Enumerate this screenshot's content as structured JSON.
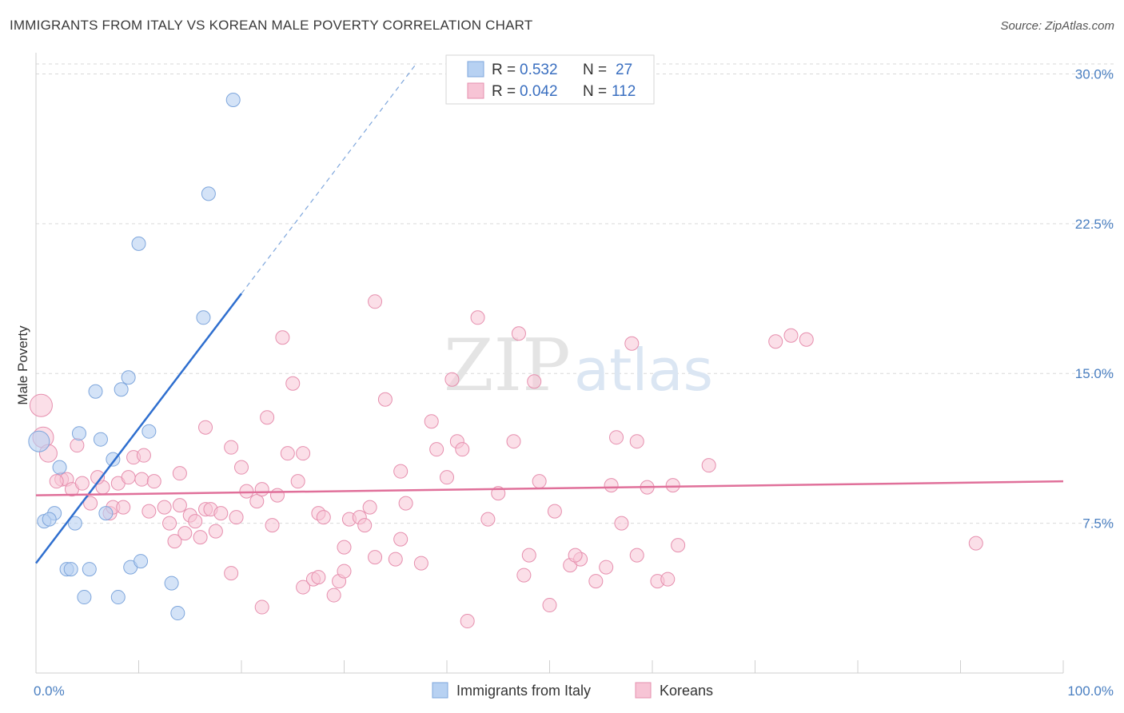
{
  "header": {
    "title": "IMMIGRANTS FROM ITALY VS KOREAN MALE POVERTY CORRELATION CHART",
    "source": "Source: ZipAtlas.com"
  },
  "watermark": {
    "zip": "ZIP",
    "atlas": "atlas"
  },
  "colors": {
    "blue_fill": "#b7d1f2",
    "blue_stroke": "#7ea6dc",
    "blue_line": "#2f6fcf",
    "pink_fill": "#f7c4d5",
    "pink_stroke": "#e68fae",
    "pink_line": "#e0709a",
    "tick_label": "#4a7fc1",
    "grid": "#d9d9d9"
  },
  "legend": {
    "rows": [
      {
        "r_label": "R =",
        "r_value": "0.532",
        "n_label": "N =",
        "n_value": "27"
      },
      {
        "r_label": "R =",
        "r_value": "0.042",
        "n_label": "N =",
        "n_value": "112"
      }
    ]
  },
  "chart_data": {
    "type": "scatter",
    "xlabel": "",
    "ylabel": "Male Poverty",
    "xlim": [
      0,
      100
    ],
    "ylim": [
      0,
      30.5
    ],
    "x_tick_labels": [
      "0.0%",
      "100.0%"
    ],
    "y_ticks": [
      7.5,
      15.0,
      22.5,
      30.0
    ],
    "y_tick_labels": [
      "7.5%",
      "15.0%",
      "22.5%",
      "30.0%"
    ],
    "grid": true,
    "legend_position": "bottom",
    "series": [
      {
        "name": "Immigrants from Italy",
        "color": "#b7d1f2",
        "trend": {
          "x": [
            0,
            20
          ],
          "y": [
            5.5,
            19.0
          ],
          "dashed_to": [
            37,
            30.5
          ]
        },
        "points": [
          [
            19.2,
            28.7
          ],
          [
            16.8,
            24.0
          ],
          [
            10.0,
            21.5
          ],
          [
            16.3,
            17.8
          ],
          [
            9.0,
            14.8
          ],
          [
            5.8,
            14.1
          ],
          [
            8.3,
            14.2
          ],
          [
            0.3,
            11.6
          ],
          [
            4.2,
            12.0
          ],
          [
            6.3,
            11.7
          ],
          [
            11.0,
            12.1
          ],
          [
            7.5,
            10.7
          ],
          [
            2.3,
            10.3
          ],
          [
            1.8,
            8.0
          ],
          [
            0.8,
            7.6
          ],
          [
            1.3,
            7.7
          ],
          [
            3.8,
            7.5
          ],
          [
            6.8,
            8.0
          ],
          [
            3.0,
            5.2
          ],
          [
            3.4,
            5.2
          ],
          [
            5.2,
            5.2
          ],
          [
            9.2,
            5.3
          ],
          [
            10.2,
            5.6
          ],
          [
            4.7,
            3.8
          ],
          [
            8.0,
            3.8
          ],
          [
            13.2,
            4.5
          ],
          [
            13.8,
            3.0
          ]
        ]
      },
      {
        "name": "Koreans",
        "color": "#f7c4d5",
        "trend": {
          "x": [
            0,
            100
          ],
          "y": [
            8.9,
            9.6
          ]
        },
        "points": [
          [
            0.5,
            13.4
          ],
          [
            0.7,
            11.8
          ],
          [
            1.2,
            11.0
          ],
          [
            4.0,
            11.4
          ],
          [
            2.5,
            9.7
          ],
          [
            3.0,
            9.7
          ],
          [
            2.0,
            9.6
          ],
          [
            3.5,
            9.2
          ],
          [
            4.5,
            9.5
          ],
          [
            5.3,
            8.5
          ],
          [
            6.5,
            9.3
          ],
          [
            7.2,
            8.0
          ],
          [
            8.0,
            9.5
          ],
          [
            9.0,
            9.8
          ],
          [
            10.3,
            9.7
          ],
          [
            9.5,
            10.8
          ],
          [
            10.5,
            10.9
          ],
          [
            6.0,
            9.8
          ],
          [
            7.5,
            8.3
          ],
          [
            8.5,
            8.3
          ],
          [
            11.0,
            8.1
          ],
          [
            12.5,
            8.3
          ],
          [
            14.0,
            8.4
          ],
          [
            15.0,
            7.9
          ],
          [
            15.5,
            7.6
          ],
          [
            16.5,
            8.2
          ],
          [
            17.0,
            8.2
          ],
          [
            18.0,
            8.0
          ],
          [
            14.5,
            7.0
          ],
          [
            13.0,
            7.5
          ],
          [
            13.5,
            6.6
          ],
          [
            16.0,
            6.8
          ],
          [
            17.5,
            7.1
          ],
          [
            19.5,
            7.8
          ],
          [
            20.5,
            9.1
          ],
          [
            21.5,
            8.6
          ],
          [
            22.0,
            9.2
          ],
          [
            23.0,
            7.4
          ],
          [
            23.5,
            8.9
          ],
          [
            25.5,
            9.6
          ],
          [
            20.0,
            10.3
          ],
          [
            19.0,
            11.3
          ],
          [
            16.5,
            12.3
          ],
          [
            14.0,
            10.0
          ],
          [
            22.5,
            12.8
          ],
          [
            24.5,
            11.0
          ],
          [
            26.0,
            11.0
          ],
          [
            25.0,
            14.5
          ],
          [
            24.0,
            16.8
          ],
          [
            27.5,
            8.0
          ],
          [
            28.0,
            7.8
          ],
          [
            30.5,
            7.7
          ],
          [
            31.5,
            7.8
          ],
          [
            32.0,
            7.4
          ],
          [
            32.5,
            8.3
          ],
          [
            30.0,
            6.3
          ],
          [
            33.0,
            5.8
          ],
          [
            35.0,
            5.7
          ],
          [
            35.5,
            6.7
          ],
          [
            37.5,
            5.5
          ],
          [
            35.5,
            10.1
          ],
          [
            36.0,
            8.5
          ],
          [
            34.0,
            13.7
          ],
          [
            33.0,
            18.6
          ],
          [
            38.5,
            12.6
          ],
          [
            39.0,
            11.2
          ],
          [
            40.0,
            9.8
          ],
          [
            41.0,
            11.6
          ],
          [
            41.5,
            11.2
          ],
          [
            40.5,
            14.7
          ],
          [
            43.0,
            17.8
          ],
          [
            44.0,
            7.7
          ],
          [
            45.0,
            9.0
          ],
          [
            46.5,
            11.6
          ],
          [
            47.0,
            17.0
          ],
          [
            48.5,
            14.6
          ],
          [
            49.0,
            9.6
          ],
          [
            48.0,
            5.9
          ],
          [
            47.5,
            4.9
          ],
          [
            50.5,
            8.1
          ],
          [
            50.0,
            3.4
          ],
          [
            52.0,
            5.4
          ],
          [
            53.0,
            5.7
          ],
          [
            52.5,
            5.9
          ],
          [
            54.5,
            4.6
          ],
          [
            55.5,
            5.3
          ],
          [
            56.0,
            9.4
          ],
          [
            56.5,
            11.8
          ],
          [
            57.0,
            7.5
          ],
          [
            58.5,
            5.9
          ],
          [
            58.0,
            16.5
          ],
          [
            58.5,
            11.6
          ],
          [
            59.5,
            9.3
          ],
          [
            60.5,
            4.6
          ],
          [
            61.5,
            4.7
          ],
          [
            62.5,
            6.4
          ],
          [
            62.0,
            9.4
          ],
          [
            65.5,
            10.4
          ],
          [
            72.0,
            16.6
          ],
          [
            73.5,
            16.9
          ],
          [
            75.0,
            16.7
          ],
          [
            91.5,
            6.5
          ],
          [
            22.0,
            3.3
          ],
          [
            19.0,
            5.0
          ],
          [
            26.0,
            4.3
          ],
          [
            27.0,
            4.7
          ],
          [
            27.5,
            4.8
          ],
          [
            29.0,
            3.9
          ],
          [
            29.5,
            4.6
          ],
          [
            30.0,
            5.1
          ],
          [
            42.0,
            2.6
          ],
          [
            11.5,
            9.6
          ]
        ]
      }
    ]
  },
  "bottom_legend": {
    "items": [
      "Immigrants from Italy",
      "Koreans"
    ]
  }
}
